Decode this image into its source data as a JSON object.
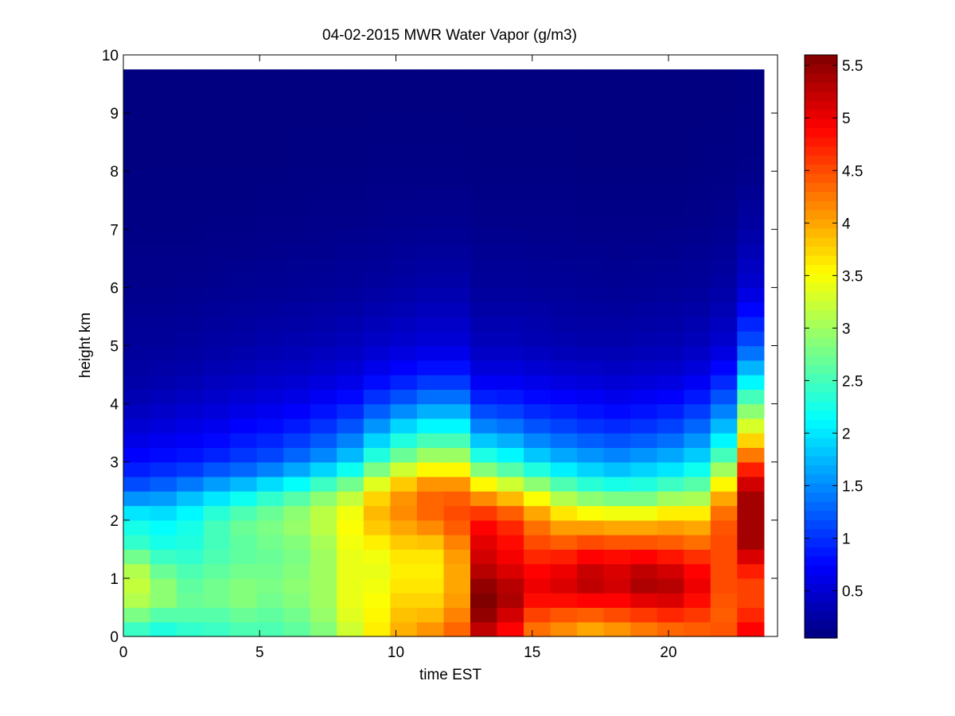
{
  "chart_data": {
    "type": "heatmap",
    "title": "04-02-2015 MWR Water Vapor (g/m3)",
    "xlabel": "time EST",
    "ylabel": "height km",
    "xlim": [
      0,
      24
    ],
    "ylim": [
      0,
      10
    ],
    "x_ticks": [
      0,
      5,
      10,
      15,
      20
    ],
    "y_ticks": [
      0,
      1,
      2,
      3,
      4,
      5,
      6,
      7,
      8,
      9,
      10
    ],
    "colorbar": {
      "colormap": "jet",
      "range": [
        0.05,
        5.6
      ],
      "ticks": [
        0.5,
        1,
        1.5,
        2,
        2.5,
        3,
        3.5,
        4,
        4.5,
        5,
        5.5
      ]
    },
    "data_extent": {
      "time": [
        0,
        23.5
      ],
      "height": [
        0,
        9.75
      ]
    },
    "time_columns": [
      0.5,
      1.5,
      2.5,
      3.5,
      4.5,
      5.5,
      6.5,
      7.5,
      8.5,
      9.5,
      10.5,
      11.5,
      12.5,
      13.5,
      14.5,
      15.5,
      16.5,
      17.5,
      18.5,
      19.5,
      20.5,
      21.5,
      22.5,
      23.5
    ],
    "height_profile_levels": [
      0,
      0.25,
      0.5,
      0.75,
      1,
      1.25,
      1.5,
      1.75,
      2,
      2.25,
      2.5,
      2.75,
      3,
      3.5,
      4,
      4.5,
      5,
      6,
      7,
      8,
      9.75
    ],
    "profiles": [
      [
        2.3,
        2.6,
        3.0,
        3.2,
        3.2,
        3.0,
        2.5,
        2.3,
        2.2,
        1.8,
        1.3,
        1.0,
        0.8,
        0.55,
        0.35,
        0.25,
        0.2,
        0.12,
        0.08,
        0.06,
        0.05
      ],
      [
        2.2,
        2.4,
        2.8,
        3.0,
        2.8,
        2.6,
        2.3,
        2.2,
        2.1,
        1.8,
        1.4,
        1.1,
        0.85,
        0.6,
        0.4,
        0.28,
        0.2,
        0.12,
        0.08,
        0.06,
        0.05
      ],
      [
        2.3,
        2.5,
        2.7,
        2.7,
        2.6,
        2.5,
        2.3,
        2.3,
        2.2,
        2.0,
        1.6,
        1.2,
        0.9,
        0.65,
        0.45,
        0.3,
        0.22,
        0.13,
        0.08,
        0.06,
        0.05
      ],
      [
        2.4,
        2.5,
        2.7,
        2.8,
        2.7,
        2.6,
        2.5,
        2.5,
        2.5,
        2.2,
        1.8,
        1.4,
        1.0,
        0.7,
        0.5,
        0.35,
        0.25,
        0.14,
        0.09,
        0.06,
        0.05
      ],
      [
        2.5,
        2.6,
        2.8,
        2.9,
        2.8,
        2.7,
        2.6,
        2.7,
        2.7,
        2.4,
        2.0,
        1.5,
        1.1,
        0.8,
        0.55,
        0.38,
        0.27,
        0.15,
        0.09,
        0.06,
        0.05
      ],
      [
        2.5,
        2.6,
        2.7,
        2.8,
        2.8,
        2.7,
        2.7,
        2.8,
        2.8,
        2.6,
        2.2,
        1.7,
        1.2,
        0.85,
        0.6,
        0.42,
        0.3,
        0.16,
        0.1,
        0.06,
        0.05
      ],
      [
        2.6,
        2.7,
        2.8,
        2.9,
        2.9,
        2.8,
        2.8,
        2.9,
        3.0,
        2.8,
        2.4,
        1.9,
        1.4,
        0.95,
        0.65,
        0.45,
        0.32,
        0.17,
        0.1,
        0.07,
        0.05
      ],
      [
        2.8,
        2.9,
        3.0,
        3.0,
        3.0,
        3.0,
        3.0,
        3.1,
        3.2,
        3.1,
        2.7,
        2.2,
        1.6,
        1.1,
        0.75,
        0.5,
        0.35,
        0.18,
        0.11,
        0.07,
        0.05
      ],
      [
        3.2,
        3.3,
        3.4,
        3.4,
        3.4,
        3.4,
        3.4,
        3.5,
        3.5,
        3.4,
        3.0,
        2.5,
        1.9,
        1.3,
        0.85,
        0.55,
        0.38,
        0.2,
        0.12,
        0.07,
        0.05
      ],
      [
        3.6,
        3.6,
        3.5,
        3.5,
        3.4,
        3.4,
        3.5,
        3.7,
        3.9,
        3.9,
        3.6,
        3.1,
        2.5,
        1.7,
        1.1,
        0.7,
        0.45,
        0.22,
        0.13,
        0.08,
        0.05
      ],
      [
        4.0,
        3.9,
        3.8,
        3.7,
        3.6,
        3.6,
        3.7,
        3.9,
        4.1,
        4.2,
        4.0,
        3.6,
        2.9,
        2.1,
        1.3,
        0.8,
        0.5,
        0.25,
        0.14,
        0.08,
        0.05
      ],
      [
        4.2,
        4.0,
        3.8,
        3.7,
        3.6,
        3.6,
        3.7,
        4.0,
        4.3,
        4.4,
        4.3,
        3.9,
        3.2,
        2.3,
        1.5,
        0.9,
        0.55,
        0.28,
        0.15,
        0.08,
        0.05
      ],
      [
        4.4,
        4.3,
        4.1,
        4.0,
        4.0,
        4.0,
        4.1,
        4.3,
        4.5,
        4.5,
        4.3,
        3.9,
        3.2,
        2.3,
        1.5,
        0.9,
        0.55,
        0.28,
        0.15,
        0.08,
        0.05
      ],
      [
        5.1,
        5.4,
        5.6,
        5.6,
        5.4,
        5.2,
        5.1,
        5.0,
        4.8,
        4.4,
        3.9,
        3.2,
        2.5,
        1.6,
        1.0,
        0.6,
        0.38,
        0.2,
        0.12,
        0.07,
        0.05
      ],
      [
        4.8,
        5.0,
        5.3,
        5.4,
        5.2,
        5.0,
        4.9,
        4.8,
        4.6,
        4.2,
        3.6,
        2.9,
        2.3,
        1.5,
        0.95,
        0.6,
        0.38,
        0.2,
        0.12,
        0.07,
        0.05
      ],
      [
        4.2,
        4.4,
        4.7,
        5.0,
        5.0,
        4.8,
        4.6,
        4.4,
        4.2,
        3.8,
        3.2,
        2.6,
        2.0,
        1.3,
        0.85,
        0.55,
        0.35,
        0.19,
        0.11,
        0.07,
        0.05
      ],
      [
        4.0,
        4.3,
        4.6,
        5.1,
        5.1,
        4.9,
        4.6,
        4.2,
        3.9,
        3.4,
        2.8,
        2.3,
        1.8,
        1.2,
        0.8,
        0.5,
        0.32,
        0.18,
        0.11,
        0.07,
        0.05
      ],
      [
        3.8,
        4.2,
        4.6,
        5.2,
        5.3,
        5.1,
        4.7,
        4.3,
        3.8,
        3.2,
        2.6,
        2.1,
        1.7,
        1.1,
        0.75,
        0.48,
        0.3,
        0.17,
        0.1,
        0.06,
        0.05
      ],
      [
        3.9,
        4.3,
        4.7,
        5.1,
        5.2,
        5.0,
        4.7,
        4.2,
        3.8,
        3.1,
        2.5,
        2.0,
        1.6,
        1.05,
        0.7,
        0.45,
        0.3,
        0.16,
        0.1,
        0.06,
        0.05
      ],
      [
        4.1,
        4.4,
        4.8,
        5.3,
        5.4,
        5.1,
        4.7,
        4.2,
        3.8,
        3.1,
        2.5,
        2.1,
        1.7,
        1.1,
        0.75,
        0.48,
        0.32,
        0.17,
        0.1,
        0.06,
        0.05
      ],
      [
        4.2,
        4.5,
        4.9,
        5.3,
        5.3,
        5.0,
        4.6,
        4.2,
        3.9,
        3.3,
        2.7,
        2.2,
        1.8,
        1.2,
        0.8,
        0.5,
        0.33,
        0.18,
        0.11,
        0.06,
        0.05
      ],
      [
        4.3,
        4.5,
        4.7,
        5.0,
        5.0,
        4.8,
        4.5,
        4.1,
        3.9,
        3.3,
        2.8,
        2.4,
        2.0,
        1.4,
        0.95,
        0.6,
        0.38,
        0.2,
        0.12,
        0.07,
        0.05
      ],
      [
        4.5,
        4.4,
        4.4,
        4.5,
        4.5,
        4.5,
        4.5,
        4.5,
        4.4,
        4.2,
        3.8,
        3.3,
        2.7,
        1.9,
        1.3,
        0.85,
        0.5,
        0.25,
        0.14,
        0.08,
        0.05
      ],
      [
        5.0,
        4.8,
        4.6,
        4.5,
        4.6,
        4.9,
        5.3,
        5.5,
        5.3,
        5.5,
        5.3,
        5.0,
        4.5,
        3.5,
        2.7,
        1.9,
        1.2,
        0.5,
        0.25,
        0.1,
        0.06
      ]
    ]
  }
}
